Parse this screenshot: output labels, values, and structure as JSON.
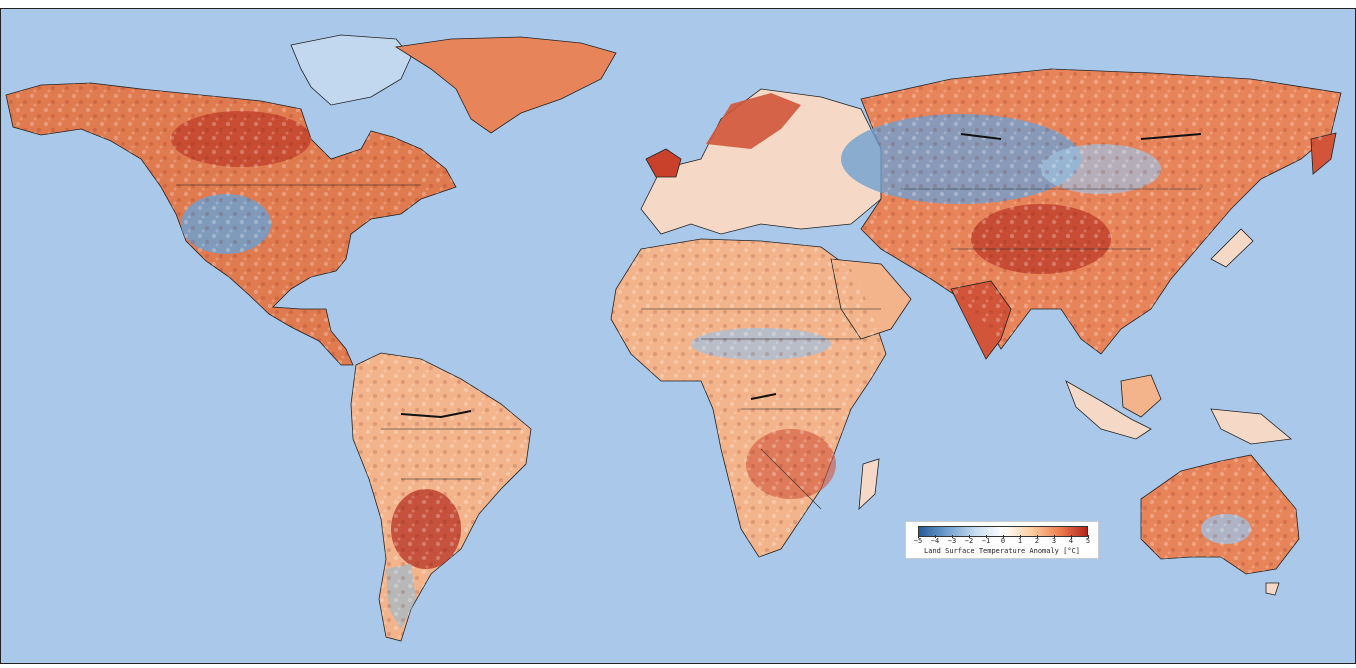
{
  "map": {
    "ocean_color": "#aac9ea",
    "land_low_color": "#2a5b9a",
    "land_mid_color": "#ffffff",
    "land_high_color": "#b2261b",
    "no_data_color": "#b8b8b8"
  },
  "legend": {
    "ticks": [
      "−5",
      "−4",
      "−3",
      "−2",
      "−1",
      "0",
      "1",
      "2",
      "3",
      "4",
      "5"
    ],
    "label": "Land Surface Temperature Anomaly [°C]",
    "vmin": -5,
    "vmax": 5
  }
}
